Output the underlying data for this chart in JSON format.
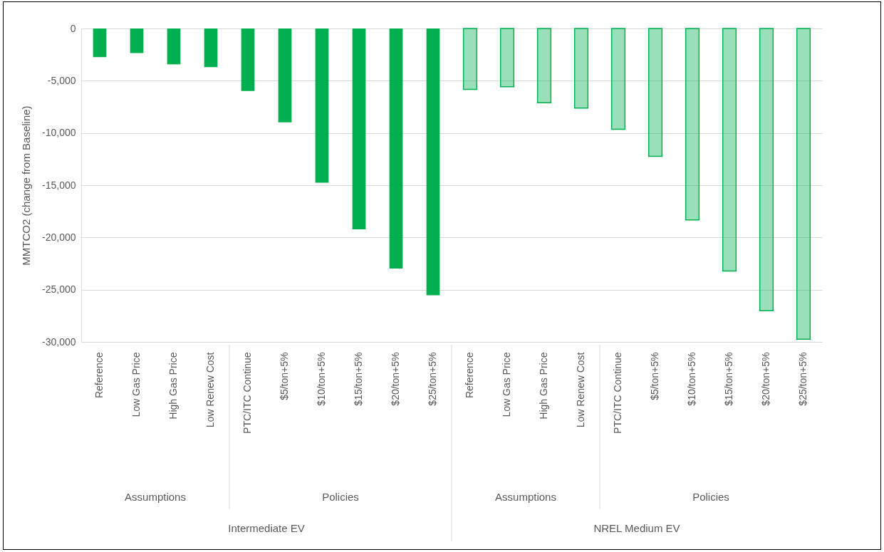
{
  "chart_data": {
    "type": "bar",
    "ylabel": "MMTCO2 (change from Baseline)",
    "categories": [
      "Reference",
      "Low Gas Price",
      "High Gas Price",
      "Low Renew Cost",
      "PTC/ITC Continue",
      "$5/ton+5%",
      "$10/ton+5%",
      "$15/ton+5%",
      "$20/ton+5%",
      "$25/ton+5%",
      "Reference",
      "Low Gas Price",
      "High Gas Price",
      "Low Renew Cost",
      "PTC/ITC Continue",
      "$5/ton+5%",
      "$10/ton+5%",
      "$15/ton+5%",
      "$20/ton+5%",
      "$25/ton+5%"
    ],
    "series": [
      {
        "color": "#00b050",
        "values": [
          -2740,
          -2350,
          -3430,
          -3700,
          -5990,
          -8980,
          -14760,
          -19220,
          -22980,
          -25540,
          null,
          null,
          null,
          null,
          null,
          null,
          null,
          null,
          null,
          null
        ]
      },
      {
        "color": "#00b050",
        "values": [
          null,
          null,
          null,
          null,
          null,
          null,
          null,
          null,
          null,
          null,
          -5830,
          -5570,
          -7100,
          -7620,
          -9640,
          -12240,
          -18330,
          -23210,
          -27020,
          -29740
        ]
      }
    ],
    "ylim": [
      -30000,
      0
    ],
    "yticks": [
      {
        "value": -30000,
        "label": "-30,000"
      },
      {
        "value": -25000,
        "label": "-25,000"
      },
      {
        "value": -20000,
        "label": "-20,000"
      },
      {
        "value": -15000,
        "label": "-15,000"
      },
      {
        "value": -10000,
        "label": "-10,000"
      },
      {
        "value": -5000,
        "label": "-5,000"
      },
      0
    ],
    "grid": "y",
    "annotations": [
      "Assumptions",
      "Policies",
      "Assumptions",
      "Policies",
      "Intermediate EV",
      "NREL Medium EV"
    ]
  }
}
